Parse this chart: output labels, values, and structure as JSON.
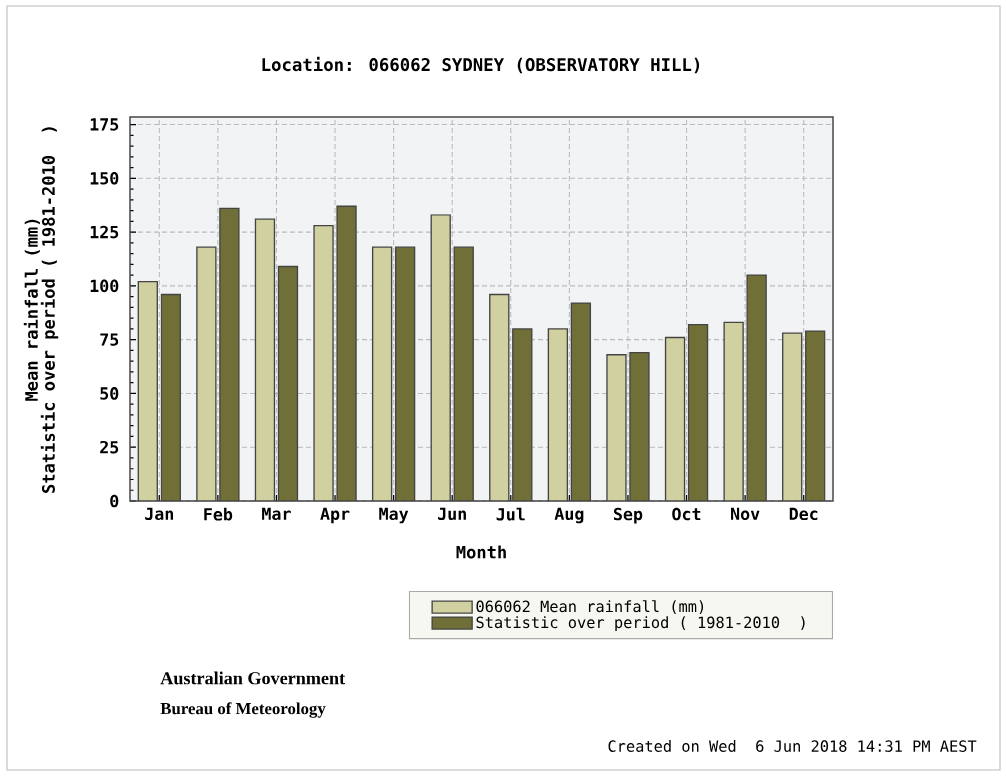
{
  "chart_data": {
    "type": "bar",
    "title": "Location: 066062 SYDNEY (OBSERVATORY HILL)",
    "xlabel": "Month",
    "ylabel": "Mean rainfall (mm)\nStatistic over period ( 1981-2010  )",
    "categories": [
      "Jan",
      "Feb",
      "Mar",
      "Apr",
      "May",
      "Jun",
      "Jul",
      "Aug",
      "Sep",
      "Oct",
      "Nov",
      "Dec"
    ],
    "series": [
      {
        "name": "066062 Mean rainfall (mm)",
        "color": "#d0d0a0",
        "values": [
          102,
          118,
          131,
          128,
          118,
          133,
          96,
          80,
          68,
          76,
          83,
          78
        ]
      },
      {
        "name": "Statistic over period ( 1981-2010  )",
        "color": "#6f6f37",
        "values": [
          96,
          136,
          109,
          137,
          118,
          118,
          80,
          92,
          69,
          82,
          105,
          79
        ]
      }
    ],
    "ylim": [
      0,
      178.5
    ],
    "yticks": [
      0,
      25,
      50,
      75,
      100,
      125,
      150,
      175
    ],
    "grid": true,
    "legend": "bottom right",
    "annotations": [
      "Australian Government",
      "Bureau of Meteorology",
      "Created on Wed  6 Jun 2018 14:31 PM AEST"
    ]
  }
}
